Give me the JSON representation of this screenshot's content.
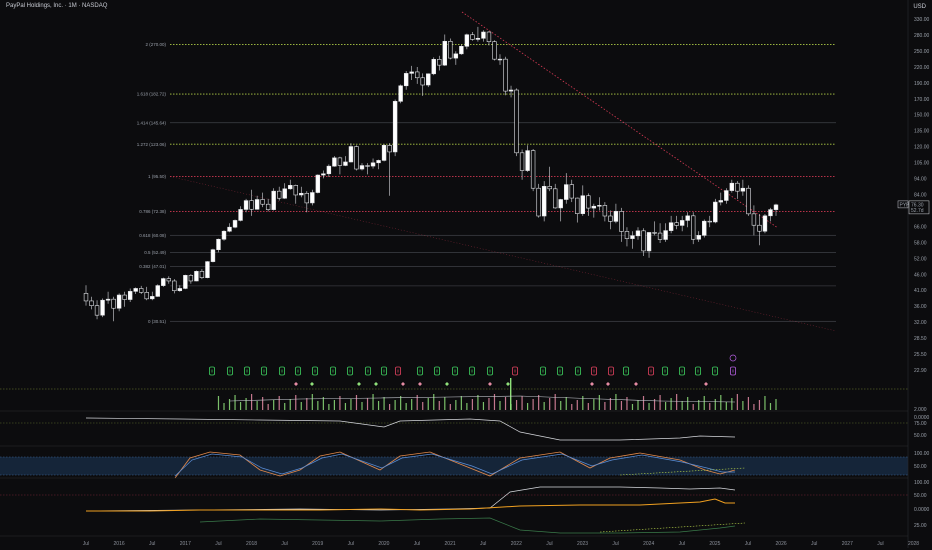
{
  "header": {
    "title": "PayPal Holdings, Inc. · 1M · NASDAQ",
    "currency": "USD"
  },
  "chart_data": {
    "type": "candlestick",
    "y_scale": "log",
    "ylim": [
      25,
      330
    ],
    "y_ticks": [
      "330.00",
      "280.00",
      "250.00",
      "220.00",
      "190.00",
      "170.00",
      "150.00",
      "135.00",
      "120.00",
      "105.00",
      "94.00",
      "84.00",
      "74.00",
      "66.00",
      "58.00",
      "52.00",
      "46.00",
      "41.00",
      "36.00",
      "32.00",
      "28.50",
      "25.50",
      "22.90"
    ],
    "x_tick_labels": [
      "Jul",
      "2016",
      "Jul",
      "2017",
      "Jul",
      "2018",
      "Jul",
      "2019",
      "Jul",
      "2020",
      "Jul",
      "2021",
      "Jul",
      "2022",
      "Jul",
      "2023",
      "Jul",
      "2024",
      "Jul",
      "2025",
      "Jul",
      "2026",
      "Jul",
      "2027",
      "Jul",
      "2028"
    ],
    "candle_start": "2015-07",
    "candles": [
      [
        38.0,
        40.5,
        34.5,
        35.8
      ],
      [
        35.8,
        37.0,
        33.5,
        34.5
      ],
      [
        34.5,
        36.0,
        31.0,
        32.0
      ],
      [
        32.0,
        36.5,
        31.5,
        36.0
      ],
      [
        36.0,
        38.5,
        35.0,
        36.3
      ],
      [
        36.3,
        37.0,
        30.5,
        33.8
      ],
      [
        33.8,
        38.0,
        33.0,
        37.5
      ],
      [
        37.5,
        38.5,
        34.2,
        36.2
      ],
      [
        36.2,
        39.5,
        35.5,
        38.6
      ],
      [
        38.6,
        39.8,
        37.8,
        39.5
      ],
      [
        39.5,
        40.3,
        37.8,
        38.3
      ],
      [
        38.3,
        40.0,
        36.0,
        36.4
      ],
      [
        36.4,
        38.5,
        36.0,
        37.1
      ],
      [
        37.1,
        40.8,
        37.0,
        40.4
      ],
      [
        40.4,
        43.0,
        40.0,
        42.7
      ],
      [
        42.7,
        43.5,
        41.0,
        41.9
      ],
      [
        41.9,
        42.5,
        38.0,
        38.8
      ],
      [
        38.8,
        40.5,
        38.5,
        39.5
      ],
      [
        39.5,
        44.0,
        39.3,
        43.8
      ],
      [
        43.8,
        44.2,
        41.0,
        41.9
      ],
      [
        41.9,
        45.5,
        41.8,
        45.2
      ],
      [
        45.2,
        46.0,
        42.5,
        43.0
      ],
      [
        43.0,
        49.0,
        42.8,
        48.8
      ],
      [
        48.8,
        54.0,
        48.5,
        53.6
      ],
      [
        53.6,
        58.5,
        52.5,
        58.2
      ],
      [
        58.2,
        62.5,
        57.5,
        62.0
      ],
      [
        62.0,
        66.0,
        61.5,
        64.0
      ],
      [
        64.0,
        68.0,
        63.5,
        67.5
      ],
      [
        67.5,
        75.5,
        67.0,
        73.6
      ],
      [
        73.6,
        80.0,
        72.0,
        78.9
      ],
      [
        78.9,
        86.0,
        70.0,
        73.7
      ],
      [
        73.7,
        82.0,
        73.5,
        79.6
      ],
      [
        79.6,
        84.0,
        75.0,
        76.7
      ],
      [
        76.7,
        80.0,
        72.5,
        73.5
      ],
      [
        73.5,
        87.0,
        73.0,
        85.0
      ],
      [
        85.0,
        88.0,
        79.0,
        80.4
      ],
      [
        80.4,
        90.5,
        80.0,
        86.6
      ],
      [
        86.6,
        93.0,
        86.0,
        89.0
      ],
      [
        89.0,
        89.5,
        77.0,
        82.5
      ],
      [
        82.5,
        88.0,
        81.0,
        83.6
      ],
      [
        83.6,
        85.0,
        72.0,
        77.5
      ],
      [
        77.5,
        86.0,
        76.0,
        84.1
      ],
      [
        84.1,
        97.0,
        83.5,
        96.5
      ],
      [
        96.5,
        100.0,
        94.0,
        97.5
      ],
      [
        97.5,
        105.0,
        95.0,
        103.5
      ],
      [
        103.5,
        112.0,
        103.0,
        110.5
      ],
      [
        110.5,
        111.5,
        97.0,
        104.1
      ],
      [
        104.1,
        112.0,
        103.5,
        107.0
      ],
      [
        107.0,
        124.0,
        106.5,
        120.8
      ],
      [
        120.8,
        122.0,
        100.0,
        101.2
      ],
      [
        101.2,
        106.0,
        100.0,
        104.0
      ],
      [
        104.0,
        106.0,
        97.0,
        103.6
      ],
      [
        103.6,
        110.0,
        101.5,
        106.3
      ],
      [
        106.3,
        109.0,
        101.0,
        108.3
      ],
      [
        108.3,
        123.0,
        107.5,
        122.0
      ],
      [
        122.0,
        124.0,
        82.0,
        115.8
      ],
      [
        115.8,
        175.0,
        112.0,
        172.5
      ],
      [
        172.5,
        197.0,
        170.0,
        195.0
      ],
      [
        195.0,
        219.0,
        189.0,
        215.0
      ],
      [
        215.0,
        228.0,
        204.0,
        217.5
      ],
      [
        217.5,
        226.0,
        198.0,
        207.7
      ],
      [
        207.7,
        215.0,
        180.0,
        196.2
      ],
      [
        196.2,
        215.0,
        193.0,
        214.3
      ],
      [
        214.3,
        244.0,
        212.0,
        240.2
      ],
      [
        240.2,
        247.0,
        220.0,
        229.4
      ],
      [
        229.4,
        292.0,
        228.0,
        276.8
      ],
      [
        276.8,
        283.0,
        240.0,
        242.5
      ],
      [
        242.5,
        256.0,
        230.0,
        250.8
      ],
      [
        250.8,
        270.0,
        249.0,
        266.1
      ],
      [
        266.1,
        294.0,
        260.0,
        291.5
      ],
      [
        291.5,
        298.0,
        278.0,
        281.0
      ],
      [
        281.0,
        310.0,
        276.0,
        283.5
      ],
      [
        283.5,
        302.0,
        276.0,
        297.8
      ],
      [
        297.8,
        300.0,
        268.0,
        276.0
      ],
      [
        276.0,
        279.0,
        238.0,
        240.5
      ],
      [
        240.5,
        250.0,
        230.0,
        240.5
      ],
      [
        240.5,
        245.0,
        181.0,
        187.0
      ],
      [
        187.0,
        195.0,
        178.0,
        188.6
      ],
      [
        188.6,
        191.0,
        112.0,
        115.0
      ],
      [
        115.0,
        118.0,
        93.0,
        100.0
      ],
      [
        100.0,
        122.0,
        99.0,
        117.0
      ],
      [
        117.0,
        118.5,
        85.0,
        87.0
      ],
      [
        87.0,
        90.0,
        69.0,
        69.9
      ],
      [
        69.9,
        92.0,
        67.0,
        88.3
      ],
      [
        88.3,
        103.0,
        85.0,
        86.6
      ],
      [
        86.6,
        90.0,
        74.0,
        74.5
      ],
      [
        74.5,
        80.0,
        67.0,
        79.6
      ],
      [
        79.6,
        98.0,
        77.0,
        89.5
      ],
      [
        89.5,
        93.0,
        78.0,
        80.5
      ],
      [
        80.5,
        80.8,
        66.4,
        71.2
      ],
      [
        71.2,
        89.0,
        70.0,
        82.0
      ],
      [
        82.0,
        83.5,
        70.0,
        74.4
      ],
      [
        74.4,
        77.0,
        69.0,
        75.5
      ],
      [
        75.5,
        81.0,
        73.0,
        76.0
      ],
      [
        76.0,
        78.0,
        67.0,
        69.9
      ],
      [
        69.9,
        73.0,
        63.0,
        67.0
      ],
      [
        67.0,
        77.0,
        66.0,
        72.5
      ],
      [
        72.5,
        74.5,
        57.0,
        61.9
      ],
      [
        61.9,
        64.0,
        55.0,
        58.5
      ],
      [
        58.5,
        62.0,
        54.0,
        59.8
      ],
      [
        59.8,
        64.0,
        58.0,
        62.2
      ],
      [
        62.2,
        63.5,
        51.0,
        53.1
      ],
      [
        53.1,
        61.5,
        50.3,
        61.4
      ],
      [
        61.4,
        67.0,
        60.0,
        61.1
      ],
      [
        61.1,
        66.0,
        56.5,
        58.1
      ],
      [
        58.1,
        66.0,
        57.0,
        62.3
      ],
      [
        62.3,
        70.0,
        61.0,
        66.3
      ],
      [
        66.3,
        70.0,
        63.0,
        64.9
      ],
      [
        64.9,
        70.0,
        62.0,
        67.5
      ],
      [
        67.5,
        72.0,
        64.0,
        70.0
      ],
      [
        70.0,
        72.0,
        56.0,
        58.2
      ],
      [
        58.2,
        62.0,
        57.0,
        60.0
      ],
      [
        60.0,
        68.0,
        59.0,
        67.1
      ],
      [
        67.1,
        70.0,
        64.0,
        66.7
      ],
      [
        66.7,
        80.0,
        66.0,
        78.0
      ],
      [
        78.0,
        84.0,
        76.0,
        79.0
      ],
      [
        79.0,
        87.0,
        77.0,
        85.4
      ],
      [
        85.4,
        93.0,
        84.0,
        90.5
      ],
      [
        90.5,
        92.0,
        80.0,
        85.0
      ],
      [
        85.0,
        93.0,
        82.0,
        87.0
      ],
      [
        87.0,
        89.0,
        70.0,
        71.1
      ],
      [
        71.1,
        76.0,
        60.0,
        65.0
      ],
      [
        65.0,
        71.0,
        55.5,
        62.0
      ],
      [
        62.0,
        71.0,
        61.0,
        70.0
      ],
      [
        70.0,
        74.5,
        67.0,
        73.5
      ],
      [
        73.5,
        77.0,
        70.0,
        76.3
      ]
    ],
    "fib_levels": [
      {
        "label": "2 (270.00)",
        "value": 270.0,
        "color": "#b8d64a"
      },
      {
        "label": "1.618 (182.72)",
        "value": 182.72,
        "color": "#b8d64a"
      },
      {
        "label": "1.414 (145.64)",
        "value": 145.64,
        "color": "#8a8f99"
      },
      {
        "label": "1.272 (123.06)",
        "value": 123.06,
        "color": "#b8d64a"
      },
      {
        "label": "1 (95.50)",
        "value": 95.5,
        "color": "#d83b55"
      },
      {
        "label": "0.786 (72.38)",
        "value": 72.38,
        "color": "#d83b55"
      },
      {
        "label": "0.618 (60.08)",
        "value": 60.08,
        "color": "#8a8f99"
      },
      {
        "label": "0.5 (52.49)",
        "value": 52.49,
        "color": "#8a8f99"
      },
      {
        "label": "0.382 (47.01)",
        "value": 47.01,
        "color": "#8a8f99"
      },
      {
        "label": "0 (30.51)",
        "value": 30.51,
        "color": "#8a8f99"
      }
    ],
    "extra_levels": [
      40.3
    ],
    "last_price": {
      "ticker": "PYPL",
      "value": "76.30",
      "sub": "52.7d"
    },
    "buy_markers_x": [
      212,
      230,
      247,
      264,
      282,
      298,
      315,
      333,
      350,
      368,
      384,
      420,
      437,
      455,
      472,
      490,
      543,
      560,
      578,
      626,
      665,
      682,
      698,
      715
    ],
    "sell_markers_x": [
      398,
      515,
      594,
      611,
      651
    ],
    "signal_marker_x": 733,
    "diamond_markers": [
      {
        "x": 296,
        "c": "#e58ba4"
      },
      {
        "x": 312,
        "c": "#8fe07a"
      },
      {
        "x": 359,
        "c": "#8fe07a"
      },
      {
        "x": 376,
        "c": "#8fe07a"
      },
      {
        "x": 403,
        "c": "#e58ba4"
      },
      {
        "x": 420,
        "c": "#e58ba4"
      },
      {
        "x": 447,
        "c": "#8fe07a"
      },
      {
        "x": 490,
        "c": "#e58ba4"
      },
      {
        "x": 508,
        "c": "#8fe07a"
      },
      {
        "x": 592,
        "c": "#e58ba4"
      },
      {
        "x": 608,
        "c": "#e58ba4"
      },
      {
        "x": 636,
        "c": "#e58ba4"
      },
      {
        "x": 706,
        "c": "#e58ba4"
      }
    ],
    "panel_ticks": [
      {
        "y": 409,
        "label": "2.000"
      },
      {
        "y": 417,
        "label": "0.0000"
      },
      {
        "y": 423,
        "label": "75.00"
      },
      {
        "y": 435,
        "label": "50.00"
      },
      {
        "y": 453,
        "label": "100.00"
      },
      {
        "y": 466,
        "label": "50.00"
      },
      {
        "y": 482,
        "label": "100.00"
      },
      {
        "y": 495,
        "label": "50.00"
      },
      {
        "y": 509,
        "label": "0.0000"
      },
      {
        "y": 525,
        "label": "25.00"
      }
    ]
  }
}
